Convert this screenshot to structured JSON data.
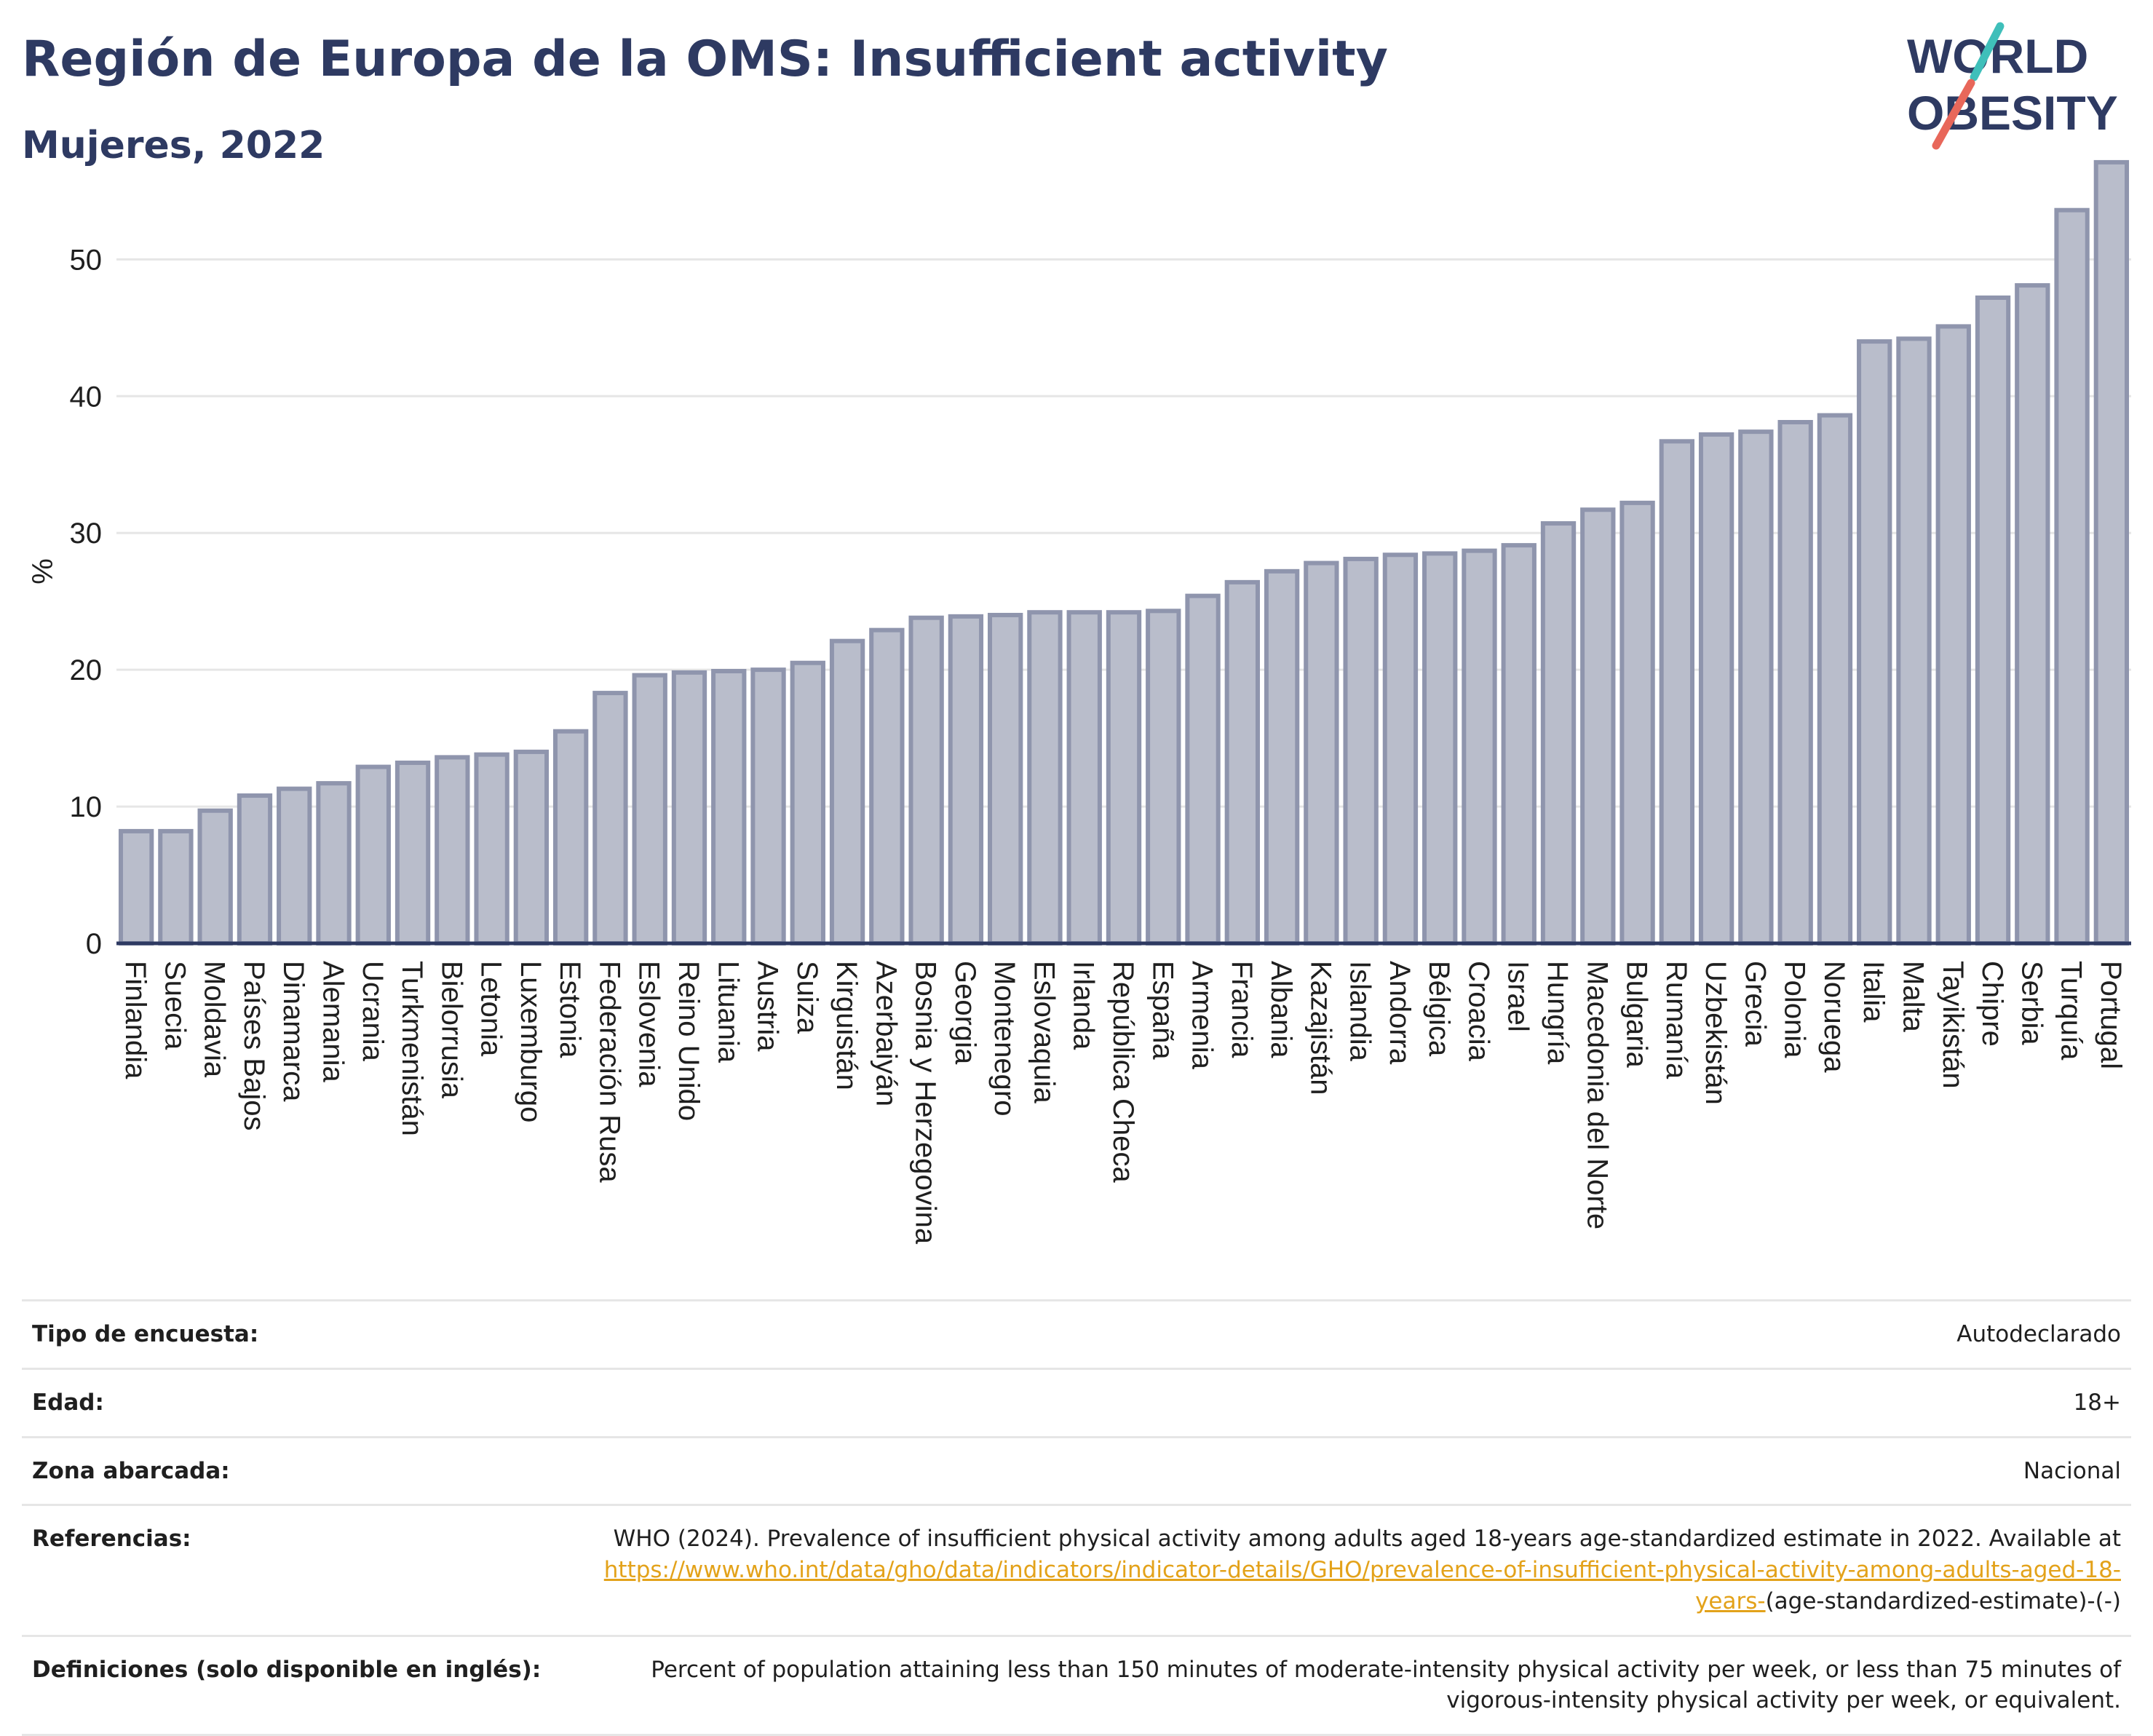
{
  "header": {
    "title": "Región de Europa de la OMS: Insufficient activity",
    "subtitle": "Mujeres, 2022"
  },
  "logo": {
    "line1": "WORLD",
    "line2": "OBESITY",
    "text_color": "#2e3a62",
    "accent_top": "#3fbfba",
    "accent_bottom": "#e8675a"
  },
  "colors": {
    "bar_fill": "#b9bdcb",
    "bar_stroke": "#8f95ad",
    "axis": "#2e3a62",
    "grid": "#e6e6e6"
  },
  "chart_data": {
    "type": "bar",
    "title": "Región de Europa de la OMS: Insufficient activity",
    "subtitle": "Mujeres, 2022",
    "xlabel": "",
    "ylabel": "%",
    "ylim": [
      0,
      58
    ],
    "yticks": [
      0,
      10,
      20,
      30,
      40,
      50
    ],
    "grid": true,
    "categories": [
      "Finlandia",
      "Suecia",
      "Moldavia",
      "Países Bajos",
      "Dinamarca",
      "Alemania",
      "Ucrania",
      "Turkmenistán",
      "Bielorrusia",
      "Letonia",
      "Luxemburgo",
      "Estonia",
      "Federación Rusa",
      "Eslovenia",
      "Reino Unido",
      "Lituania",
      "Austria",
      "Suiza",
      "Kirguistán",
      "Azerbaiyán",
      "Bosnia y Herzegovina",
      "Georgia",
      "Montenegro",
      "Eslovaquia",
      "Irlanda",
      "República Checa",
      "España",
      "Armenia",
      "Francia",
      "Albania",
      "Kazajistán",
      "Islandia",
      "Andorra",
      "Bélgica",
      "Croacia",
      "Israel",
      "Hungría",
      "Macedonia del Norte",
      "Bulgaria",
      "Rumanía",
      "Uzbekistán",
      "Grecia",
      "Polonia",
      "Noruega",
      "Italia",
      "Malta",
      "Tayikistán",
      "Chipre",
      "Serbia",
      "Turquía",
      "Portugal"
    ],
    "values": [
      8.2,
      8.2,
      9.7,
      10.8,
      11.3,
      11.7,
      12.9,
      13.2,
      13.6,
      13.8,
      14.0,
      15.5,
      18.3,
      19.6,
      19.8,
      19.9,
      20.0,
      20.5,
      22.1,
      22.9,
      23.8,
      23.9,
      24.0,
      24.2,
      24.2,
      24.2,
      24.3,
      25.4,
      26.4,
      27.2,
      27.8,
      28.1,
      28.4,
      28.5,
      28.7,
      29.1,
      30.7,
      31.7,
      32.2,
      36.7,
      37.2,
      37.4,
      38.1,
      38.6,
      44.0,
      44.2,
      45.1,
      47.2,
      48.1,
      53.6,
      57.1
    ]
  },
  "meta": {
    "rows": [
      {
        "label": "Tipo de encuesta:",
        "value": "Autodeclarado"
      },
      {
        "label": "Edad:",
        "value": "18+"
      },
      {
        "label": "Zona abarcada:",
        "value": "Nacional"
      },
      {
        "label": "Referencias:",
        "text": "WHO (2024). Prevalence of insufficient physical activity among adults aged 18-years age-standardized estimate in 2022. Available at",
        "link": "https://www.who.int/data/gho/data/indicators/indicator-details/GHO/prevalence-of-insufficient-physical-activity-among-adults-aged-18-years-",
        "tail": "(age-standardized-estimate)-(-)"
      },
      {
        "label": "Definiciones (solo disponible en inglés):",
        "value": "Percent of population attaining less than 150 minutes of moderate-intensity physical activity per week, or less than 75 minutes of vigorous-intensity physical activity per week, or equivalent."
      }
    ]
  }
}
